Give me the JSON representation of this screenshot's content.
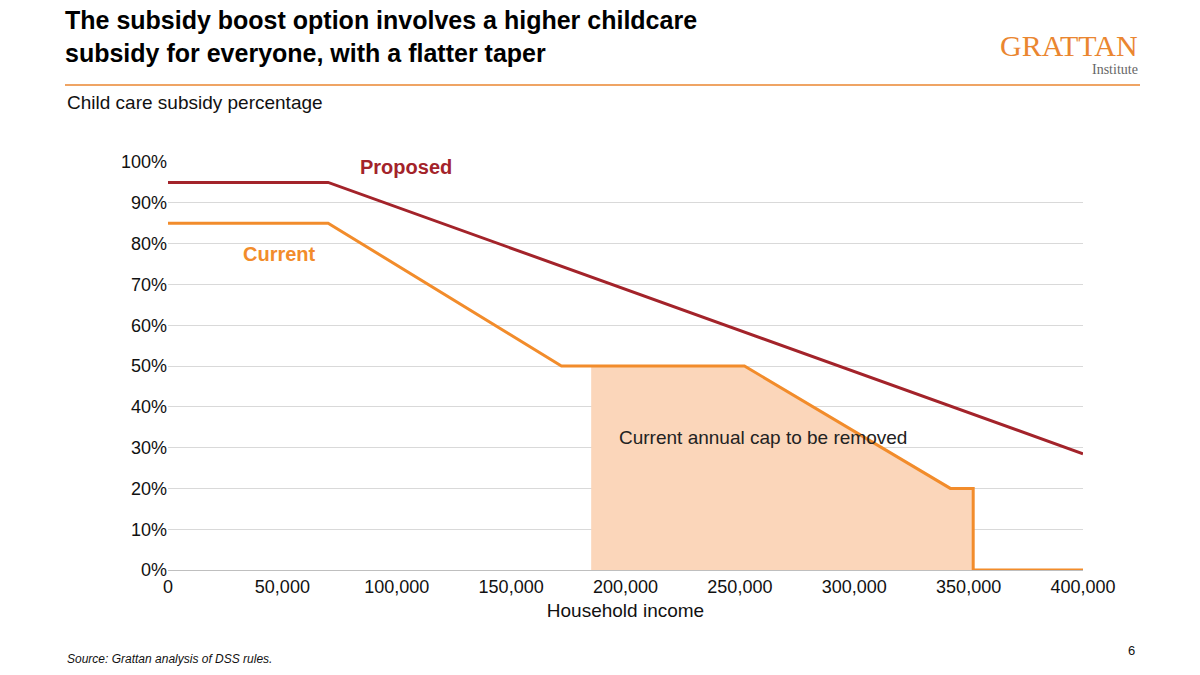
{
  "chart_data": {
    "type": "line",
    "title": "The subsidy boost option involves a higher childcare\nsubsidy for everyone, with a flatter taper",
    "y_label": "Child care subsidy percentage",
    "x_label": "Household income",
    "source": "Source: Grattan analysis of DSS rules.",
    "page_number": 6,
    "logo": "GRATTAN",
    "logo_subtitle": "Institute",
    "series": [
      {
        "name": "Current annual cap to be removed",
        "type": "area",
        "color": "#fbd6ba",
        "x": [
          185000,
          252000,
          342000,
          352000
        ],
        "values": [
          50,
          50,
          20,
          20
        ]
      },
      {
        "name": "Proposed",
        "type": "line",
        "color": "#a3232a",
        "x": [
          0,
          70000,
          400000
        ],
        "values": [
          95,
          95,
          28.5
        ]
      },
      {
        "name": "Current",
        "type": "line",
        "color": "#f28c2b",
        "x": [
          0,
          70000,
          172000,
          252000,
          342000,
          352000,
          352000,
          400000
        ],
        "values": [
          85,
          85,
          50,
          50,
          20,
          20,
          0,
          0
        ]
      }
    ],
    "xlim": [
      0,
      400000
    ],
    "xticks": [
      0,
      {
        "value": 50000,
        "label": "50,000"
      },
      {
        "value": 100000,
        "label": "100,000"
      },
      {
        "value": 150000,
        "label": "150,000"
      },
      {
        "value": 200000,
        "label": "200,000"
      },
      {
        "value": 250000,
        "label": "250,000"
      },
      {
        "value": 300000,
        "label": "300,000"
      },
      {
        "value": 350000,
        "label": "350,000"
      },
      {
        "value": 400000,
        "label": "400,000"
      }
    ],
    "ylim": [
      0,
      100
    ],
    "yticks": [
      {
        "value": 0,
        "label": "0%"
      },
      {
        "value": 10,
        "label": "10%"
      },
      {
        "value": 20,
        "label": "20%"
      },
      {
        "value": 30,
        "label": "30%"
      },
      {
        "value": 40,
        "label": "40%"
      },
      {
        "value": 50,
        "label": "50%"
      },
      {
        "value": 60,
        "label": "60%"
      },
      {
        "value": 70,
        "label": "70%"
      },
      {
        "value": 80,
        "label": "80%"
      },
      {
        "value": 90,
        "label": "90%"
      },
      {
        "value": 100,
        "label": "100%"
      }
    ],
    "grid": true
  }
}
